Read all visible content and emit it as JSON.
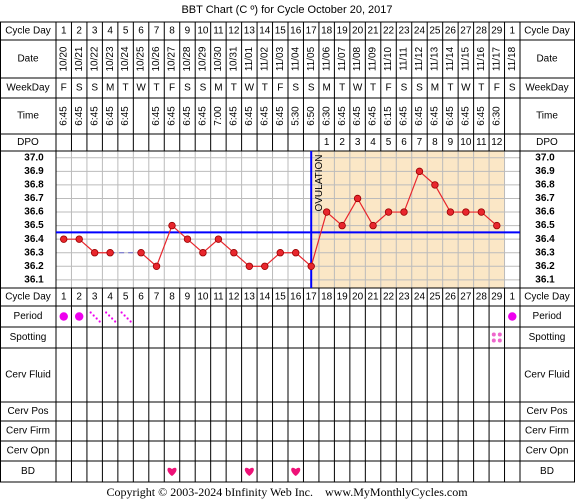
{
  "chart_data": {
    "type": "line",
    "title": "BBT Chart (C º) for Cycle October 20, 2017",
    "row_labels": {
      "cycle_day": "Cycle Day",
      "date": "Date",
      "weekday": "WeekDay",
      "time": "Time",
      "dpo": "DPO",
      "period": "Period",
      "spotting": "Spotting",
      "cerv_fluid": "Cerv Fluid",
      "cerv_pos": "Cerv Pos",
      "cerv_firm": "Cerv Firm",
      "cerv_opn": "Cerv Opn",
      "bd": "BD"
    },
    "cycle_days": [
      1,
      2,
      3,
      4,
      5,
      6,
      7,
      8,
      9,
      10,
      11,
      12,
      13,
      14,
      15,
      16,
      17,
      18,
      19,
      20,
      21,
      22,
      23,
      24,
      25,
      26,
      27,
      28,
      29,
      1
    ],
    "dates": [
      "10/20",
      "10/21",
      "10/22",
      "10/23",
      "10/24",
      "10/25",
      "10/26",
      "10/27",
      "10/28",
      "10/29",
      "10/30",
      "10/31",
      "11/01",
      "11/02",
      "11/03",
      "11/04",
      "11/05",
      "11/06",
      "11/07",
      "11/08",
      "11/09",
      "11/10",
      "11/11",
      "11/12",
      "11/13",
      "11/14",
      "11/15",
      "11/16",
      "11/17",
      "11/18"
    ],
    "weekdays": [
      "F",
      "S",
      "S",
      "M",
      "T",
      "W",
      "T",
      "F",
      "S",
      "S",
      "M",
      "T",
      "W",
      "T",
      "F",
      "S",
      "S",
      "M",
      "T",
      "W",
      "T",
      "F",
      "S",
      "S",
      "M",
      "T",
      "W",
      "T",
      "F",
      "S"
    ],
    "times": [
      "6:45",
      "6:45",
      "6:45",
      "6:45",
      "6:45",
      null,
      "6:45",
      "6:45",
      "6:45",
      "6:45",
      "7:00",
      "6:45",
      "6:45",
      "6:45",
      "6:45",
      "5:30",
      "6:50",
      "6:30",
      "6:45",
      "6:45",
      "6:45",
      "6:15",
      "6:45",
      "6:45",
      "6:45",
      "6:45",
      "6:45",
      "6:45",
      "6:30",
      null
    ],
    "dpo": [
      null,
      null,
      null,
      null,
      null,
      null,
      null,
      null,
      null,
      null,
      null,
      null,
      null,
      null,
      null,
      null,
      null,
      1,
      2,
      3,
      4,
      5,
      6,
      7,
      8,
      9,
      10,
      11,
      12,
      null
    ],
    "values": [
      36.4,
      36.4,
      36.3,
      36.3,
      null,
      36.3,
      36.2,
      36.5,
      36.4,
      36.3,
      36.4,
      36.3,
      36.2,
      36.2,
      36.3,
      36.3,
      36.2,
      36.6,
      36.5,
      36.7,
      36.5,
      36.6,
      36.6,
      36.9,
      36.8,
      36.6,
      36.6,
      36.6,
      36.5,
      null
    ],
    "color": "#e8262d",
    "ylim": [
      36.04,
      37.05
    ],
    "yticks": [
      {
        "value": 37,
        "label": "37.0"
      },
      36.9,
      36.8,
      36.7,
      36.6,
      36.5,
      36.4,
      36.3,
      36.2,
      36.1
    ],
    "grid": true,
    "coverline": 36.45,
    "coverline_color": "#0000ff",
    "ovulation_day": 17,
    "ovulation_label": "OVULATION",
    "fertile_color": "#fbe7c6",
    "period": {
      "heavy_days": [
        1,
        2,
        30
      ],
      "light_days": [
        3,
        4,
        5
      ],
      "color": "#ee00ee"
    },
    "spotting": {
      "days": [
        29
      ],
      "color": "#ee66cc"
    },
    "bd": {
      "days": [
        8,
        13,
        16
      ],
      "color": "#ee1177"
    },
    "footer": "Copyright © 2003-2024 bInfinity Web Inc.    www.MyMonthlyCycles.com"
  }
}
